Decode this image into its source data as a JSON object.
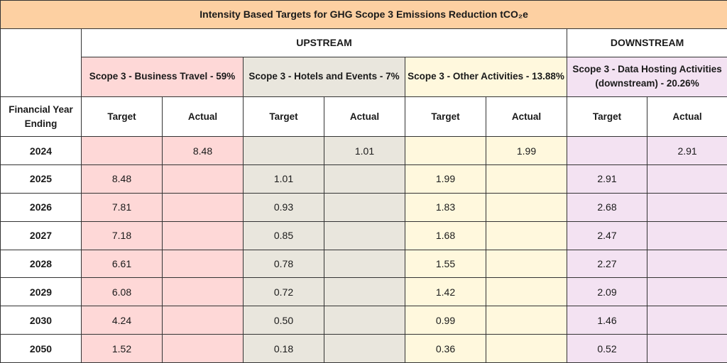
{
  "title": "Intensity Based Targets for GHG Scope 3 Emissions Reduction tCO₂e",
  "groups": {
    "upstream": "UPSTREAM",
    "downstream": "DOWNSTREAM"
  },
  "categories": [
    "Scope 3 - Business Travel - 59%",
    "Scope 3 - Hotels and Events - 7%",
    "Scope 3 - Other Activities - 13.88%",
    "Scope 3 - Data Hosting Activities (downstream) - 20.26%"
  ],
  "colors": {
    "title_bg": "#fdd0a2",
    "business_travel": "#fed8d7",
    "hotels_events": "#e9e6dd",
    "other_activities": "#fff8dd",
    "data_hosting": "#f3e2f2"
  },
  "year_header": "Financial Year Ending",
  "target_label": "Target",
  "actual_label": "Actual",
  "rows": [
    {
      "year": "2024",
      "cells": [
        "",
        "8.48",
        "",
        "1.01",
        "",
        "1.99",
        "",
        "2.91"
      ]
    },
    {
      "year": "2025",
      "cells": [
        "8.48",
        "",
        "1.01",
        "",
        "1.99",
        "",
        "2.91",
        ""
      ]
    },
    {
      "year": "2026",
      "cells": [
        "7.81",
        "",
        "0.93",
        "",
        "1.83",
        "",
        "2.68",
        ""
      ]
    },
    {
      "year": "2027",
      "cells": [
        "7.18",
        "",
        "0.85",
        "",
        "1.68",
        "",
        "2.47",
        ""
      ]
    },
    {
      "year": "2028",
      "cells": [
        "6.61",
        "",
        "0.78",
        "",
        "1.55",
        "",
        "2.27",
        ""
      ]
    },
    {
      "year": "2029",
      "cells": [
        "6.08",
        "",
        "0.72",
        "",
        "1.42",
        "",
        "2.09",
        ""
      ]
    },
    {
      "year": "2030",
      "cells": [
        "4.24",
        "",
        "0.50",
        "",
        "0.99",
        "",
        "1.46",
        ""
      ]
    },
    {
      "year": "2050",
      "cells": [
        "1.52",
        "",
        "0.18",
        "",
        "0.36",
        "",
        "0.52",
        ""
      ]
    }
  ]
}
